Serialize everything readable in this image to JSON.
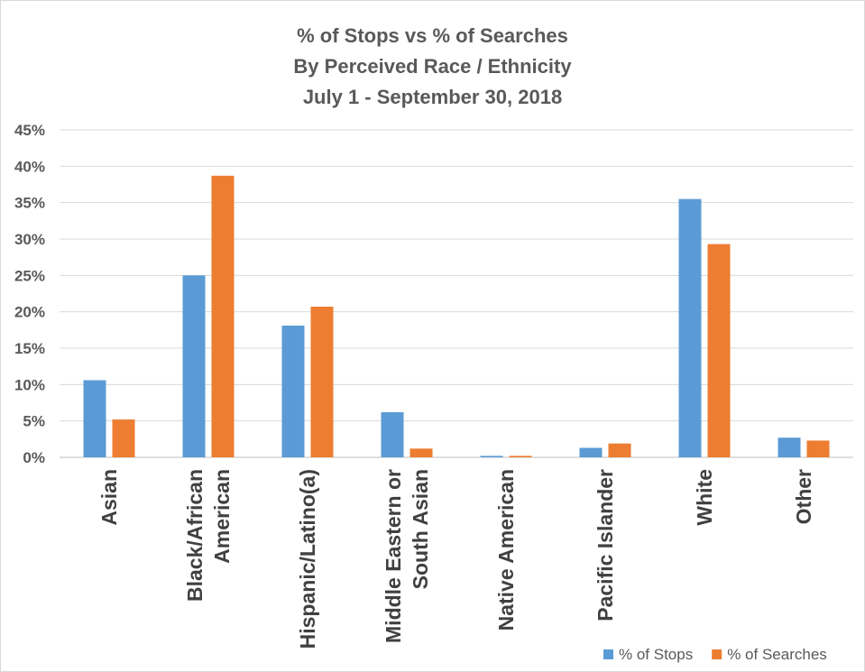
{
  "chart_data": {
    "type": "bar",
    "title_lines": [
      "% of Stops vs % of Searches",
      "By Perceived Race / Ethnicity",
      "July 1 - September 30, 2018"
    ],
    "xlabel": "",
    "ylabel": "",
    "ylim": [
      0,
      45
    ],
    "yticks": [
      "0%",
      "5%",
      "10%",
      "15%",
      "20%",
      "25%",
      "30%",
      "35%",
      "40%",
      "45%"
    ],
    "grid": true,
    "legend_position": "bottom-right",
    "categories": [
      [
        "Asian"
      ],
      [
        "Black/African",
        "American"
      ],
      [
        "Hispanic/Latino(a)"
      ],
      [
        "Middle Eastern or",
        "South Asian"
      ],
      [
        "Native American"
      ],
      [
        "Pacific Islander"
      ],
      [
        "White"
      ],
      [
        "Other"
      ]
    ],
    "series": [
      {
        "name": "% of Stops",
        "color": "#5b9bd5",
        "values": [
          10.6,
          25.0,
          18.1,
          6.2,
          0.2,
          1.3,
          35.5,
          2.7
        ]
      },
      {
        "name": "% of Searches",
        "color": "#ed7d31",
        "values": [
          5.2,
          38.7,
          20.7,
          1.2,
          0.2,
          1.9,
          29.3,
          2.3
        ]
      }
    ]
  }
}
